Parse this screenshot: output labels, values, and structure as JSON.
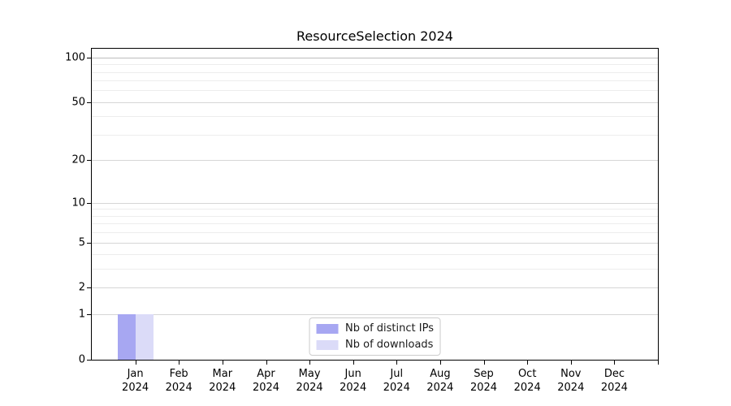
{
  "chart_data": {
    "type": "bar",
    "title": "ResourceSelection 2024",
    "categories": [
      "Jan 2024",
      "Feb 2024",
      "Mar 2024",
      "Apr 2024",
      "May 2024",
      "Jun 2024",
      "Jul 2024",
      "Aug 2024",
      "Sep 2024",
      "Oct 2024",
      "Nov 2024",
      "Dec 2024"
    ],
    "series": [
      {
        "name": "Nb of distinct IPs",
        "color": "#a7a7f2",
        "values": [
          1,
          0,
          0,
          0,
          0,
          0,
          0,
          0,
          0,
          0,
          0,
          0
        ]
      },
      {
        "name": "Nb of downloads",
        "color": "#dbdbf8",
        "values": [
          1,
          0,
          0,
          0,
          0,
          0,
          0,
          0,
          0,
          0,
          0,
          0
        ]
      }
    ],
    "xlabel": "",
    "ylabel": "",
    "yscale": "log1p",
    "ylim": [
      0,
      114
    ],
    "yticks_major": [
      0,
      1,
      2,
      5,
      10,
      20,
      50,
      100
    ],
    "yticks_minor": [
      3,
      4,
      6,
      7,
      8,
      9,
      30,
      40,
      60,
      70,
      80,
      90
    ],
    "grid": "horizontal",
    "legend_position": "lower center",
    "colors": {
      "axis": "#000000",
      "grid_major": "#d6d6d6",
      "grid_minor": "#ededed",
      "grid_top": "#bdbdbd",
      "legend_border": "#cccccc"
    }
  }
}
